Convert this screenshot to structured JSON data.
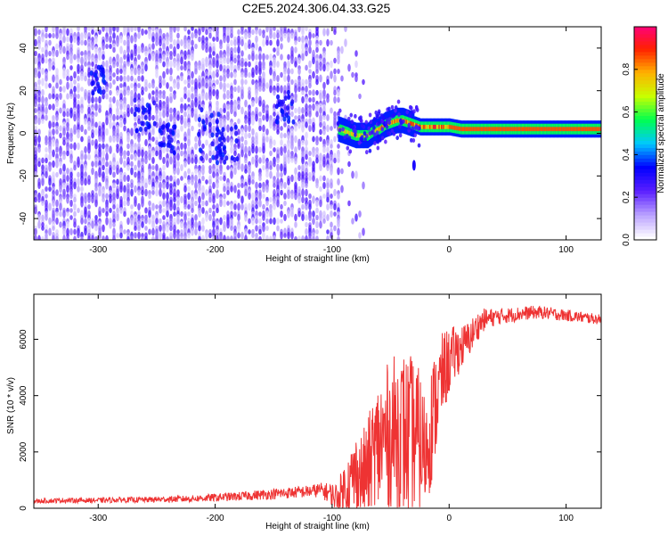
{
  "page_title": "C2E5.2024.306.04.33.G25",
  "chart_data": [
    {
      "type": "heatmap",
      "title": "C2E5.2024.306.04.33.G25",
      "xlabel": "Height of straight line (km)",
      "ylabel": "Frequency (Hz)",
      "xlim": [
        -355,
        130
      ],
      "ylim": [
        -50,
        50
      ],
      "xticks": [
        -300,
        -200,
        -100,
        0,
        100
      ],
      "yticks": [
        -40,
        -20,
        0,
        20,
        40
      ],
      "xtick_labels": [
        "-300",
        "-200",
        "-100",
        "0",
        "100"
      ],
      "ytick_labels": [
        "-40",
        "-20",
        "0",
        "20",
        "40"
      ],
      "colorbar": {
        "label": "Normalized spectral amplitude",
        "range": [
          0,
          1
        ],
        "ticks": [
          0.0,
          0.2,
          0.4,
          0.6,
          0.8
        ],
        "tick_labels": [
          "0.0",
          "0.2",
          "0.4",
          "0.6",
          "0.8"
        ],
        "colors": [
          "#ffffff",
          "#b9a0ff",
          "#5a1fff",
          "#0000ff",
          "#00c8ff",
          "#00ff50",
          "#c8ff00",
          "#ffb000",
          "#ff2000",
          "#ff0080"
        ]
      },
      "regions": [
        {
          "x_range": [
            -355,
            -95
          ],
          "description_level": 0.12
        },
        {
          "x_range": [
            -95,
            130
          ],
          "center_frequency_hz": 2,
          "peak_level": 0.9
        }
      ],
      "ridge": {
        "x": [
          -95,
          -90,
          -85,
          -80,
          -75,
          -70,
          -65,
          -60,
          -55,
          -50,
          -45,
          -40,
          -35,
          -30,
          -25,
          -20,
          -15,
          -10,
          -5,
          0,
          10,
          20,
          40,
          60,
          80,
          100,
          130
        ],
        "frequency": [
          2,
          1,
          0,
          -1,
          -1,
          -1,
          1,
          2,
          4,
          5,
          6,
          6,
          5,
          4,
          3,
          3,
          3,
          3,
          3,
          3,
          2,
          2,
          2,
          2,
          2,
          2,
          2
        ]
      }
    },
    {
      "type": "line",
      "title": "",
      "xlabel": "Height of straight line (km)",
      "ylabel": "SNR (10 * v/v)",
      "xlim": [
        -355,
        130
      ],
      "ylim": [
        0,
        7600
      ],
      "xticks": [
        -300,
        -200,
        -100,
        0,
        100
      ],
      "yticks": [
        0,
        2000,
        4000,
        6000
      ],
      "xtick_labels": [
        "-300",
        "-200",
        "-100",
        "0",
        "100"
      ],
      "ytick_labels": [
        "0",
        "2000",
        "4000",
        "6000"
      ],
      "color": "#ee3333",
      "series": [
        {
          "x": [
            -355,
            -330,
            -300,
            -280,
            -260,
            -240,
            -220,
            -200,
            -180,
            -160,
            -140,
            -120,
            -110,
            -100,
            -95,
            -90,
            -85,
            -80,
            -75,
            -70,
            -65,
            -60,
            -55,
            -50,
            -45,
            -40,
            -35,
            -30,
            -25,
            -20,
            -15,
            -10,
            -5,
            0,
            5,
            10,
            15,
            20,
            25,
            30,
            35,
            40,
            50,
            60,
            70,
            80,
            90,
            100,
            110,
            120,
            130
          ],
          "y": [
            250,
            280,
            280,
            300,
            300,
            320,
            340,
            380,
            420,
            480,
            540,
            600,
            650,
            500,
            350,
            700,
            900,
            1200,
            1100,
            1300,
            1800,
            2200,
            2500,
            2600,
            2800,
            2700,
            2500,
            2600,
            2300,
            2000,
            3000,
            4000,
            4800,
            5200,
            5500,
            5700,
            5900,
            6200,
            6500,
            6700,
            6750,
            6800,
            6850,
            6900,
            6950,
            6950,
            6900,
            6850,
            6800,
            6750,
            6700
          ],
          "noise_amplitude": [
            80,
            90,
            90,
            100,
            100,
            110,
            120,
            140,
            160,
            180,
            200,
            220,
            260,
            400,
            600,
            900,
            1200,
            1500,
            1600,
            1800,
            2200,
            2500,
            2600,
            2600,
            2800,
            3000,
            3000,
            2800,
            2600,
            2000,
            2200,
            1800,
            1500,
            1200,
            1000,
            800,
            700,
            600,
            500,
            400,
            350,
            300,
            280,
            260,
            240,
            230,
            220,
            210,
            200,
            190,
            180
          ]
        }
      ]
    }
  ]
}
